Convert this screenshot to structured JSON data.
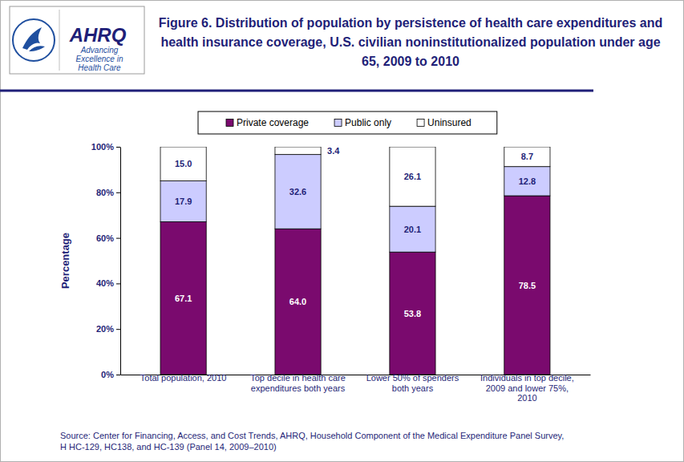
{
  "header": {
    "logo_text": "AHRQ",
    "logo_tagline": [
      "Advancing",
      "Excellence in",
      "Health Care"
    ]
  },
  "chart_data": {
    "type": "bar",
    "stacked": true,
    "data_labels": true,
    "grid": false,
    "legend": "top",
    "title": "Figure 6. Distribution of population by persistence of health care expenditures and health insurance coverage, U.S. civilian noninstitutionalized population under age 65, 2009 to 2010",
    "y_label": "Percentage",
    "source": [
      "Source: Center for Financing, Access, and Cost Trends, AHRQ, Household Component of the Medical Expenditure Panel Survey,",
      "H HC-129, HC138, and HC-139 (Panel 14, 2009–2010)"
    ],
    "categories": [
      "Total population, 2010",
      "Top decile in health care expenditures both years",
      "Lower 50% of spenders both years",
      "Individuals in top decile, 2009 and lower 75%, 2010"
    ],
    "series": [
      {
        "name": "Private coverage",
        "color": "#7a0a6e",
        "values": [
          67.1,
          64.0,
          53.8,
          78.5
        ],
        "value_labels": [
          "67.1",
          "64.0",
          "53.8",
          "78.5"
        ]
      },
      {
        "name": "Public only",
        "color": "#ccccff",
        "values": [
          17.9,
          32.6,
          20.1,
          12.8
        ],
        "value_labels": [
          "17.9",
          "32.6",
          "20.1",
          "12.8"
        ]
      },
      {
        "name": "Uninsured",
        "color": "#ffffff",
        "values": [
          15.0,
          3.4,
          26.1,
          8.7
        ],
        "value_labels": [
          "15.0",
          "3.4",
          "26.1",
          "8.7"
        ]
      }
    ],
    "ylim": [
      0,
      100
    ],
    "yticks": [
      {
        "value": 0,
        "label": "0%"
      },
      {
        "value": 20,
        "label": "20%"
      },
      {
        "value": 40,
        "label": "40%"
      },
      {
        "value": 60,
        "label": "60%"
      },
      {
        "value": 80,
        "label": "80%"
      },
      {
        "value": 100,
        "label": "100%"
      }
    ]
  }
}
